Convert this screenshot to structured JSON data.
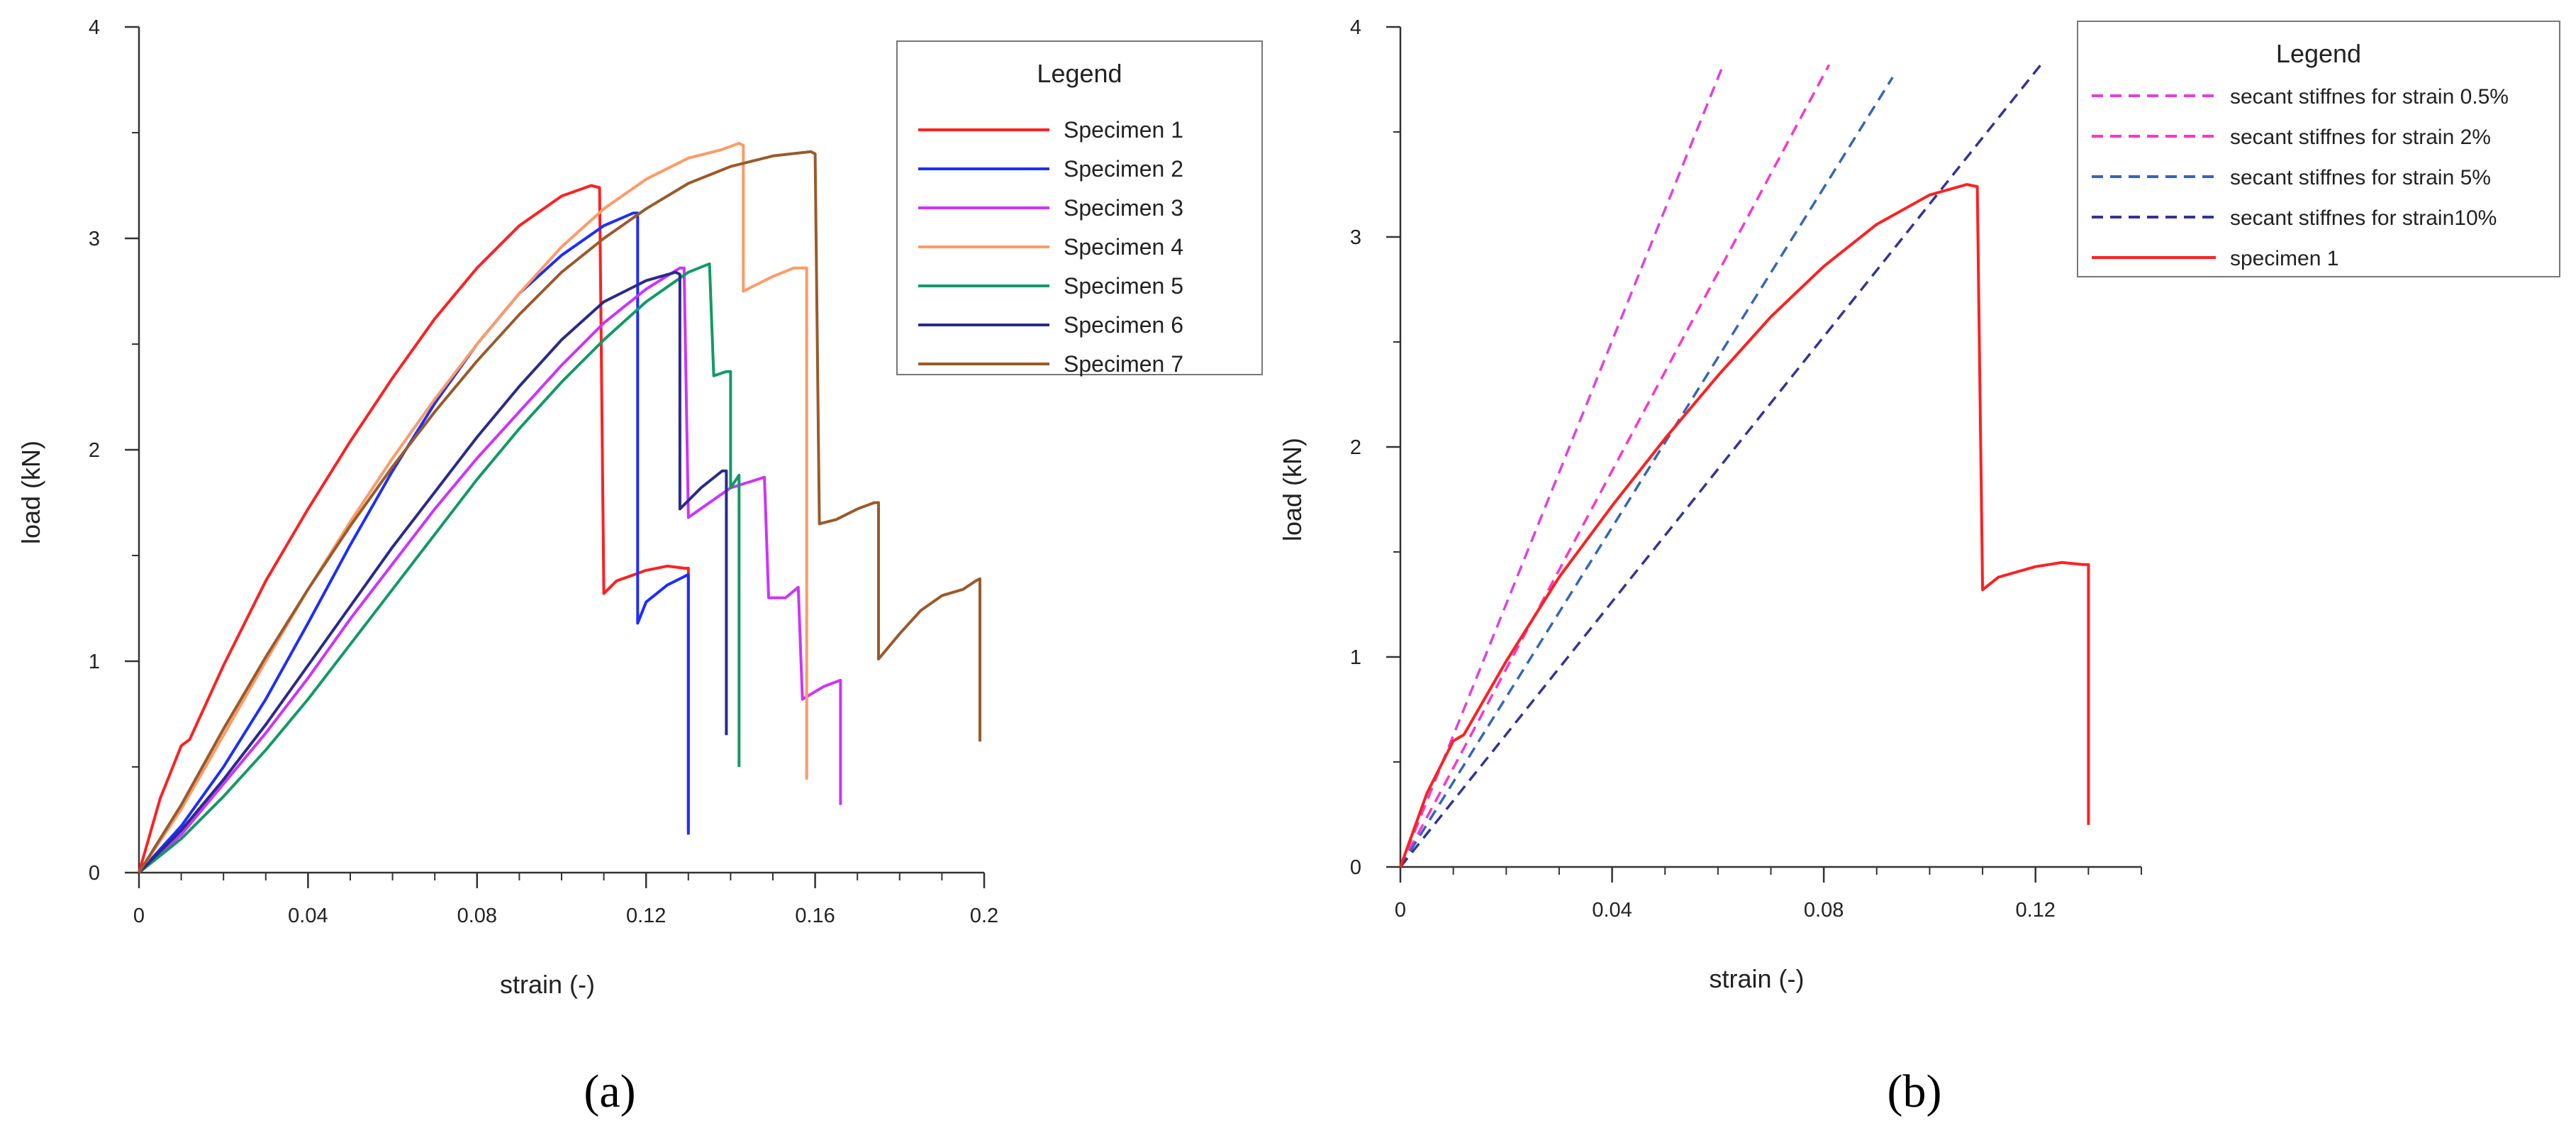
{
  "chart_data": [
    {
      "id": "a",
      "panel_label": "(a)",
      "type": "line",
      "xlabel": "strain (-)",
      "ylabel": "load (kN)",
      "xlim": [
        0,
        0.2
      ],
      "ylim": [
        0,
        4
      ],
      "xticks": [
        "0",
        "0.04",
        "0.08",
        "0.12",
        "0.16",
        "0.2"
      ],
      "yticks": [
        "0",
        "1",
        "2",
        "3",
        "4"
      ],
      "legend_title": "Legend",
      "legend_position": "top-right",
      "series": [
        {
          "name": "Specimen 1",
          "color": "#ff2020",
          "dash": "solid",
          "x": [
            0,
            0.005,
            0.01,
            0.012,
            0.02,
            0.03,
            0.04,
            0.05,
            0.06,
            0.07,
            0.08,
            0.09,
            0.1,
            0.107,
            0.109,
            0.11,
            0.113,
            0.12,
            0.125,
            0.129,
            0.13,
            0.13
          ],
          "y": [
            0,
            0.35,
            0.6,
            0.63,
            0.98,
            1.38,
            1.72,
            2.04,
            2.34,
            2.62,
            2.86,
            3.06,
            3.2,
            3.25,
            3.24,
            1.32,
            1.38,
            1.43,
            1.45,
            1.44,
            1.44,
            0.2
          ]
        },
        {
          "name": "Specimen 2",
          "color": "#1c2eff",
          "dash": "solid",
          "x": [
            0,
            0.01,
            0.02,
            0.03,
            0.04,
            0.05,
            0.06,
            0.07,
            0.08,
            0.09,
            0.1,
            0.11,
            0.117,
            0.118,
            0.118,
            0.12,
            0.125,
            0.13,
            0.13
          ],
          "y": [
            0,
            0.22,
            0.5,
            0.82,
            1.18,
            1.55,
            1.9,
            2.22,
            2.5,
            2.74,
            2.92,
            3.06,
            3.12,
            3.12,
            1.18,
            1.28,
            1.36,
            1.41,
            0.18
          ]
        },
        {
          "name": "Specimen 3",
          "color": "#cc33ff",
          "dash": "solid",
          "x": [
            0,
            0.01,
            0.02,
            0.03,
            0.04,
            0.05,
            0.06,
            0.07,
            0.08,
            0.09,
            0.1,
            0.11,
            0.12,
            0.128,
            0.129,
            0.13,
            0.14,
            0.148,
            0.149,
            0.153,
            0.156,
            0.157,
            0.162,
            0.166,
            0.166
          ],
          "y": [
            0,
            0.18,
            0.42,
            0.66,
            0.92,
            1.2,
            1.46,
            1.72,
            1.96,
            2.18,
            2.4,
            2.6,
            2.76,
            2.86,
            2.86,
            1.68,
            1.82,
            1.87,
            1.3,
            1.3,
            1.35,
            0.82,
            0.88,
            0.91,
            0.32
          ]
        },
        {
          "name": "Specimen 4",
          "color": "#ff9a66",
          "dash": "solid",
          "x": [
            0,
            0.01,
            0.02,
            0.03,
            0.04,
            0.05,
            0.06,
            0.07,
            0.08,
            0.09,
            0.1,
            0.11,
            0.12,
            0.13,
            0.138,
            0.142,
            0.143,
            0.143,
            0.15,
            0.155,
            0.158,
            0.158
          ],
          "y": [
            0,
            0.3,
            0.65,
            1.0,
            1.34,
            1.66,
            1.96,
            2.24,
            2.5,
            2.74,
            2.96,
            3.14,
            3.28,
            3.38,
            3.42,
            3.45,
            3.44,
            2.75,
            2.82,
            2.86,
            2.86,
            0.44
          ]
        },
        {
          "name": "Specimen 5",
          "color": "#129966",
          "dash": "solid",
          "x": [
            0,
            0.01,
            0.02,
            0.03,
            0.04,
            0.05,
            0.06,
            0.07,
            0.08,
            0.09,
            0.1,
            0.11,
            0.12,
            0.13,
            0.135,
            0.136,
            0.139,
            0.14,
            0.14,
            0.142,
            0.142
          ],
          "y": [
            0,
            0.16,
            0.36,
            0.58,
            0.82,
            1.08,
            1.34,
            1.6,
            1.86,
            2.1,
            2.32,
            2.52,
            2.7,
            2.84,
            2.88,
            2.35,
            2.37,
            2.37,
            1.82,
            1.88,
            0.5
          ]
        },
        {
          "name": "Specimen 6",
          "color": "#2a2a8c",
          "dash": "solid",
          "x": [
            0,
            0.01,
            0.02,
            0.03,
            0.04,
            0.05,
            0.06,
            0.07,
            0.08,
            0.09,
            0.1,
            0.11,
            0.12,
            0.127,
            0.128,
            0.128,
            0.133,
            0.138,
            0.139,
            0.139
          ],
          "y": [
            0,
            0.2,
            0.44,
            0.7,
            0.98,
            1.26,
            1.54,
            1.8,
            2.06,
            2.3,
            2.52,
            2.7,
            2.8,
            2.84,
            2.83,
            1.72,
            1.82,
            1.9,
            1.9,
            0.65
          ]
        },
        {
          "name": "Specimen 7",
          "color": "#9a5a2a",
          "dash": "solid",
          "x": [
            0,
            0.01,
            0.02,
            0.03,
            0.04,
            0.05,
            0.06,
            0.07,
            0.08,
            0.09,
            0.1,
            0.11,
            0.12,
            0.13,
            0.14,
            0.15,
            0.159,
            0.16,
            0.161,
            0.165,
            0.17,
            0.174,
            0.175,
            0.175,
            0.18,
            0.185,
            0.19,
            0.195,
            0.198,
            0.199,
            0.199
          ],
          "y": [
            0,
            0.32,
            0.68,
            1.02,
            1.34,
            1.64,
            1.92,
            2.18,
            2.42,
            2.64,
            2.84,
            3.0,
            3.14,
            3.26,
            3.34,
            3.39,
            3.41,
            3.4,
            1.65,
            1.67,
            1.72,
            1.75,
            1.75,
            1.01,
            1.13,
            1.24,
            1.31,
            1.34,
            1.38,
            1.39,
            0.62
          ]
        }
      ]
    },
    {
      "id": "b",
      "panel_label": "(b)",
      "type": "line",
      "xlabel": "strain (-)",
      "ylabel": "load (kN)",
      "xlim": [
        0,
        0.14
      ],
      "ylim": [
        0,
        4
      ],
      "xticks": [
        "0",
        "0.04",
        "0.08",
        "0.12"
      ],
      "yticks": [
        "0",
        "1",
        "2",
        "3",
        "4"
      ],
      "legend_title": "Legend",
      "legend_position": "top-right",
      "series": [
        {
          "name": "secant stiffnes for strain 0.5%",
          "color": "#e040e0",
          "dash": "dashed",
          "x": [
            0,
            0.061
          ],
          "y": [
            0,
            3.82
          ]
        },
        {
          "name": "secant stiffnes for strain 2%",
          "color": "#ff33cc",
          "dash": "dashed",
          "x": [
            0,
            0.081
          ],
          "y": [
            0,
            3.82
          ]
        },
        {
          "name": "secant stiffnes for strain 5%",
          "color": "#3366bb",
          "dash": "dashed",
          "x": [
            0,
            0.093
          ],
          "y": [
            0,
            3.76
          ]
        },
        {
          "name": "secant stiffnes for strain10%",
          "color": "#333399",
          "dash": "dashed",
          "x": [
            0,
            0.121
          ],
          "y": [
            0,
            3.82
          ]
        },
        {
          "name": "specimen 1",
          "color": "#ff2020",
          "dash": "solid",
          "x": [
            0,
            0.005,
            0.01,
            0.012,
            0.02,
            0.03,
            0.04,
            0.05,
            0.06,
            0.07,
            0.08,
            0.09,
            0.1,
            0.107,
            0.109,
            0.11,
            0.113,
            0.12,
            0.125,
            0.129,
            0.13,
            0.13
          ],
          "y": [
            0,
            0.35,
            0.6,
            0.63,
            0.98,
            1.38,
            1.72,
            2.04,
            2.34,
            2.62,
            2.86,
            3.06,
            3.2,
            3.25,
            3.24,
            1.32,
            1.38,
            1.43,
            1.45,
            1.44,
            1.44,
            0.2
          ]
        }
      ]
    }
  ]
}
